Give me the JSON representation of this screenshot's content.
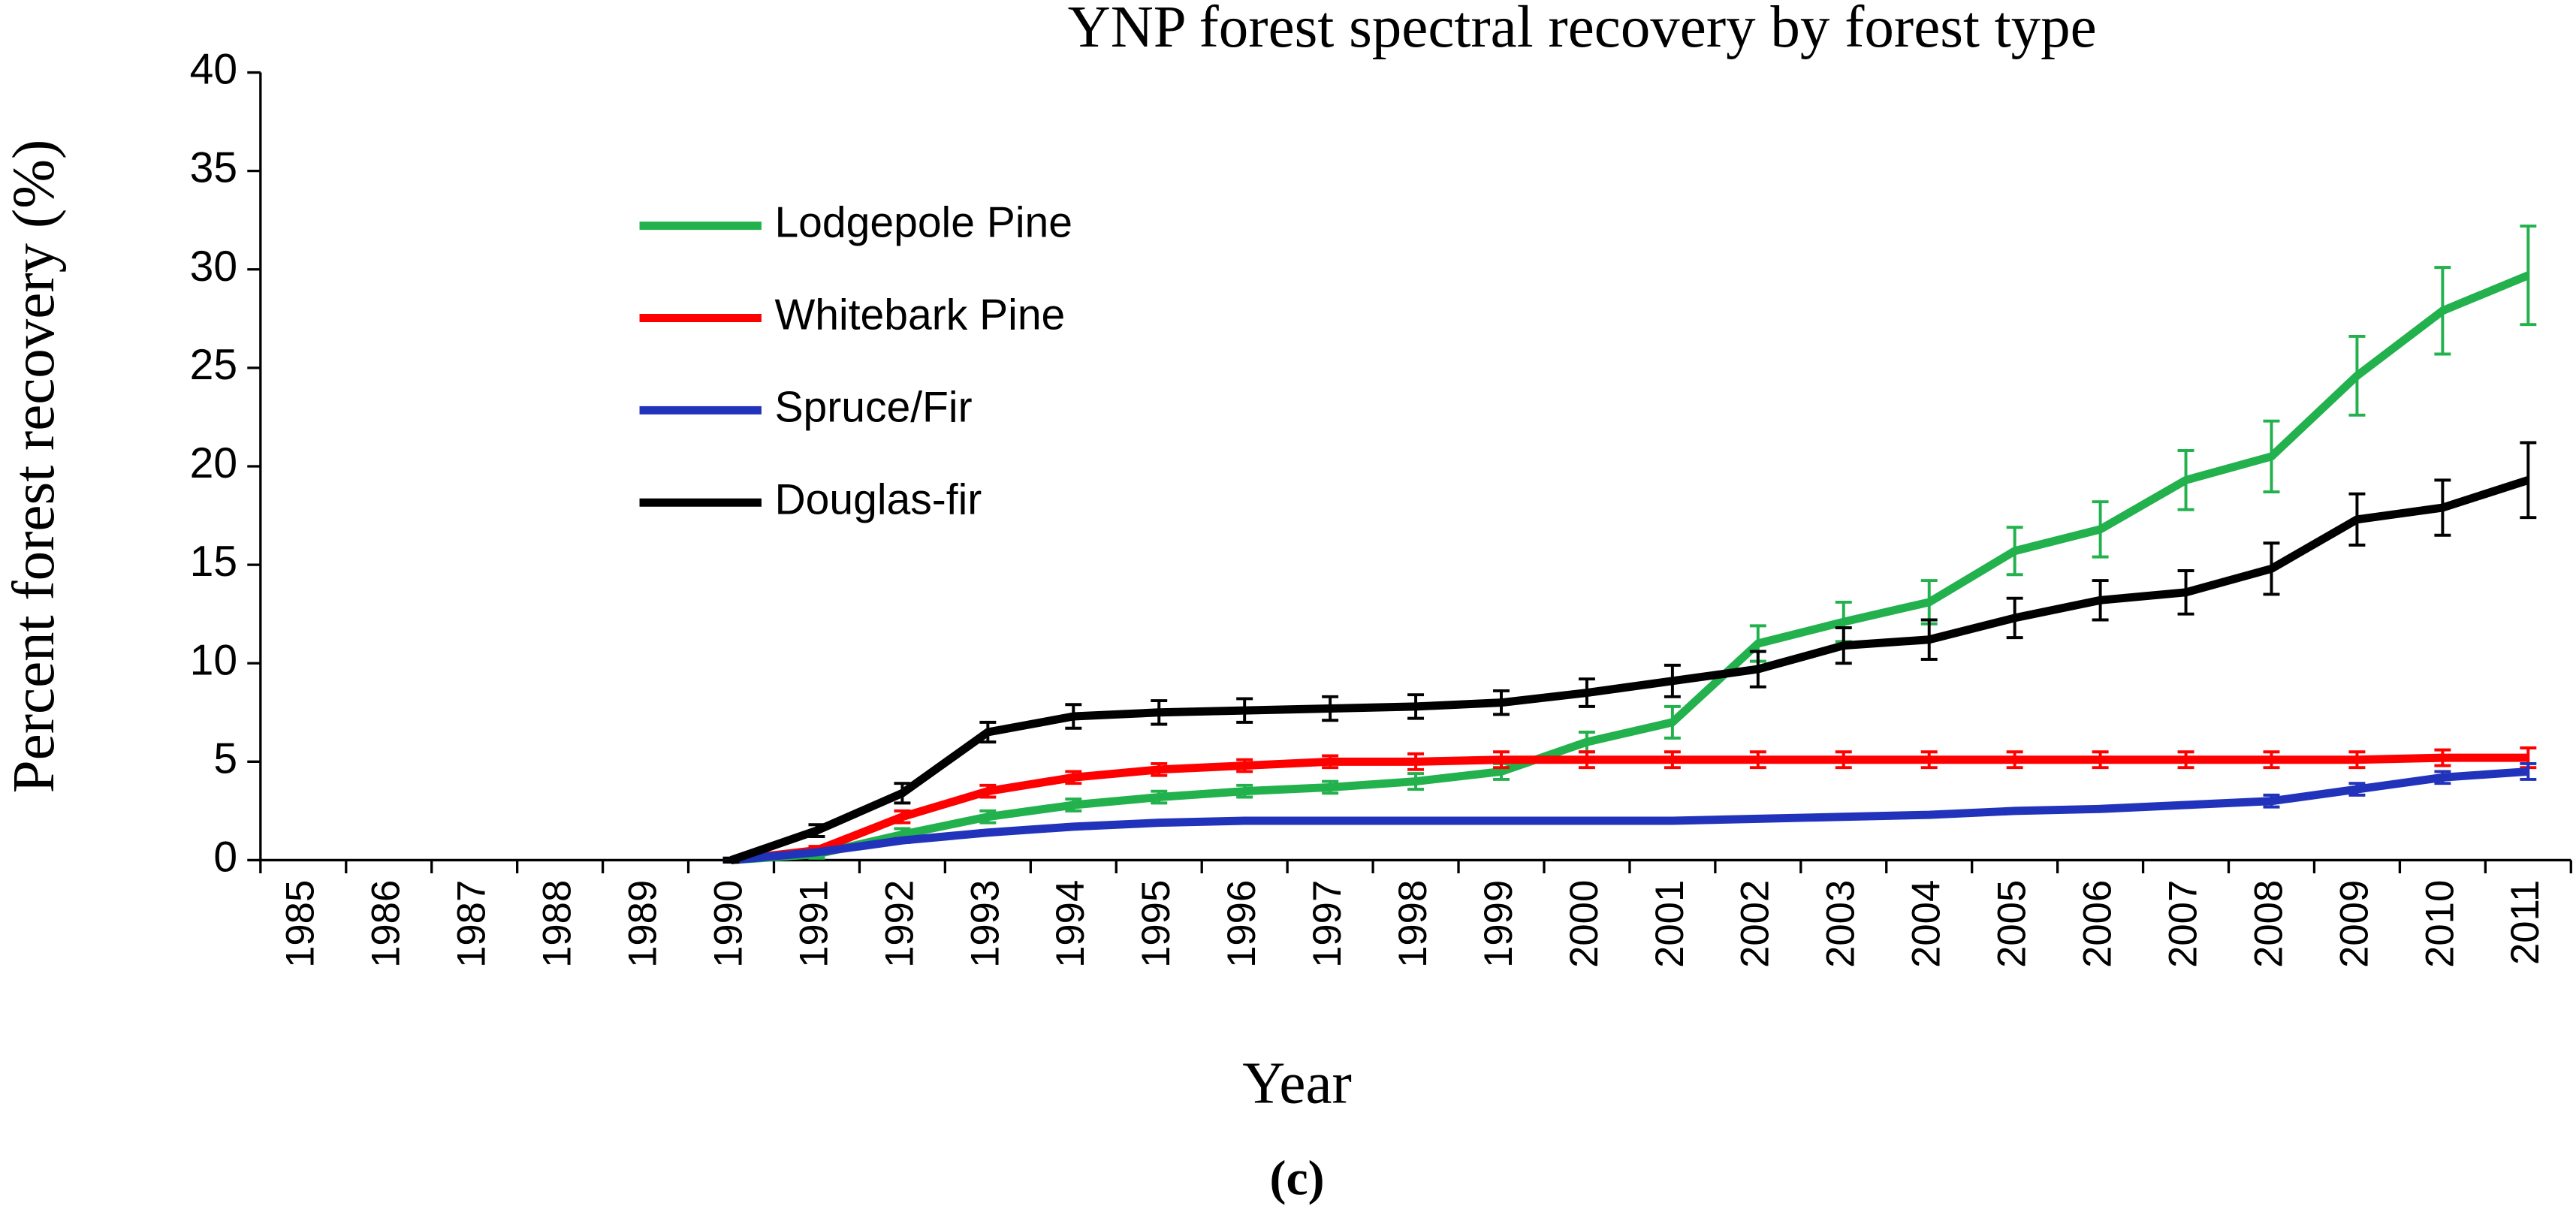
{
  "chart_data": {
    "type": "line",
    "title": "YNP forest spectral recovery by forest type",
    "x_label": "Year",
    "y_label": "Percent forest recovery (%)",
    "caption": "(c)",
    "categories": [
      "1985",
      "1986",
      "1987",
      "1988",
      "1989",
      "1990",
      "1991",
      "1992",
      "1993",
      "1994",
      "1995",
      "1996",
      "1997",
      "1998",
      "1999",
      "2000",
      "2001",
      "2002",
      "2003",
      "2004",
      "2005",
      "2006",
      "2007",
      "2008",
      "2009",
      "2010",
      "2011"
    ],
    "ylim": [
      0,
      40
    ],
    "yticks": [
      0,
      5,
      10,
      15,
      20,
      25,
      30,
      35,
      40
    ],
    "grid": false,
    "legend": "upper left",
    "series": [
      {
        "name": "Lodgepole Pine",
        "color": "#22b14c",
        "values": [
          null,
          null,
          null,
          null,
          null,
          0,
          0.3,
          1.3,
          2.2,
          2.8,
          3.2,
          3.5,
          3.7,
          4.0,
          4.5,
          6.0,
          7.0,
          11.0,
          12.1,
          13.1,
          15.7,
          16.8,
          19.3,
          20.5,
          24.6,
          27.9,
          29.7
        ],
        "errors": [
          null,
          null,
          null,
          null,
          null,
          0.1,
          0.2,
          0.3,
          0.3,
          0.3,
          0.3,
          0.3,
          0.3,
          0.4,
          0.4,
          0.5,
          0.8,
          0.9,
          1.0,
          1.1,
          1.2,
          1.4,
          1.5,
          1.8,
          2.0,
          2.2,
          2.5
        ]
      },
      {
        "name": "Whitebark Pine",
        "color": "#ff0000",
        "values": [
          null,
          null,
          null,
          null,
          null,
          0,
          0.5,
          2.2,
          3.5,
          4.2,
          4.6,
          4.8,
          5.0,
          5.0,
          5.1,
          5.1,
          5.1,
          5.1,
          5.1,
          5.1,
          5.1,
          5.1,
          5.1,
          5.1,
          5.1,
          5.2,
          5.2
        ],
        "errors": [
          null,
          null,
          null,
          null,
          null,
          0.1,
          0.2,
          0.3,
          0.3,
          0.3,
          0.3,
          0.3,
          0.3,
          0.4,
          0.4,
          0.4,
          0.4,
          0.4,
          0.4,
          0.4,
          0.4,
          0.4,
          0.4,
          0.4,
          0.4,
          0.4,
          0.5
        ]
      },
      {
        "name": "Spruce/Fir",
        "color": "#2233bb",
        "values": [
          null,
          null,
          null,
          null,
          null,
          0,
          0.4,
          1.0,
          1.4,
          1.7,
          1.9,
          2.0,
          2.0,
          2.0,
          2.0,
          2.0,
          2.0,
          2.1,
          2.2,
          2.3,
          2.5,
          2.6,
          2.8,
          3.0,
          3.6,
          4.2,
          4.5
        ],
        "errors": [
          null,
          null,
          null,
          null,
          null,
          0.1,
          0.1,
          0.1,
          0.1,
          0.1,
          0.1,
          0.1,
          0.1,
          0.1,
          0.1,
          0.1,
          0.1,
          0.1,
          0.1,
          0.1,
          0.1,
          0.1,
          0.1,
          0.3,
          0.3,
          0.3,
          0.4
        ]
      },
      {
        "name": "Douglas-fir",
        "color": "#000000",
        "values": [
          null,
          null,
          null,
          null,
          null,
          0,
          1.5,
          3.4,
          6.5,
          7.3,
          7.5,
          7.6,
          7.7,
          7.8,
          8.0,
          8.5,
          9.1,
          9.7,
          10.9,
          11.2,
          12.3,
          13.2,
          13.6,
          14.8,
          17.3,
          17.9,
          19.3
        ],
        "errors": [
          null,
          null,
          null,
          null,
          null,
          0.1,
          0.3,
          0.5,
          0.5,
          0.6,
          0.6,
          0.6,
          0.6,
          0.6,
          0.6,
          0.7,
          0.8,
          0.9,
          0.9,
          1.0,
          1.0,
          1.0,
          1.1,
          1.3,
          1.3,
          1.4,
          1.9
        ]
      }
    ]
  }
}
